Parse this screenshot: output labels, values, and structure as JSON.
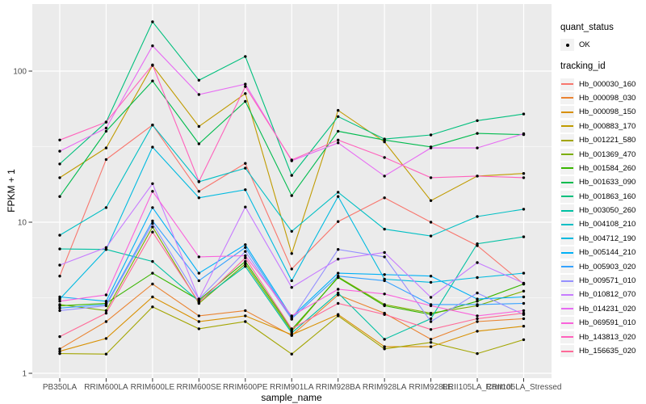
{
  "chart_data": {
    "type": "line",
    "title": "",
    "xlabel": "sample_name",
    "ylabel": "FPKM + 1",
    "y_scale": "log10",
    "y_ticks": [
      1,
      10,
      100
    ],
    "y_tick_labels": [
      "1",
      "10",
      "100"
    ],
    "y_minor_ticks": [
      3.162,
      31.62
    ],
    "ylim": [
      1.25,
      280
    ],
    "categories": [
      "PB350LA",
      "RRIM600LA",
      "RRIM600LE",
      "RRIM600SE",
      "RRIM600PE",
      "RRIM901LA",
      "RRIM928BA",
      "RRIM928LA",
      "RRIM928LE",
      "RRII105LA_Control",
      "RRII105LA_Stressed"
    ],
    "panel_bg": "#EBEBEB",
    "gridline_color": "#FFFFFF",
    "tick_color": "#333333",
    "tick_label_color": "#4D4D4D",
    "point_color": "#000000",
    "legend": {
      "quant_status": {
        "title": "quant_status",
        "items": [
          {
            "label": "OK",
            "marker": "black-point"
          }
        ]
      },
      "tracking_id": {
        "title": "tracking_id",
        "marker": "line"
      }
    },
    "series": [
      {
        "name": "Hb_000030_160",
        "color": "#F8766D",
        "values": [
          4.4,
          26,
          44,
          16,
          24.5,
          4.9,
          10.1,
          14.5,
          10,
          7,
          3.9
        ]
      },
      {
        "name": "Hb_000098_030",
        "color": "#EA8331",
        "values": [
          1.45,
          2.2,
          3.9,
          2.4,
          2.6,
          1.78,
          3.3,
          2.5,
          1.68,
          2.2,
          2.3
        ]
      },
      {
        "name": "Hb_000098_150",
        "color": "#D89000",
        "values": [
          1.4,
          1.7,
          3.2,
          2.2,
          2.4,
          1.8,
          2.45,
          1.5,
          1.5,
          1.9,
          2.05
        ]
      },
      {
        "name": "Hb_000883_170",
        "color": "#C09B00",
        "values": [
          19.7,
          31,
          109,
          43,
          71,
          6.2,
          55,
          34,
          13.9,
          20.2,
          21
        ]
      },
      {
        "name": "Hb_001221_580",
        "color": "#A3A500",
        "values": [
          1.35,
          1.34,
          2.75,
          1.97,
          2.2,
          1.34,
          2.4,
          1.45,
          1.6,
          1.35,
          1.67
        ]
      },
      {
        "name": "Hb_001369_470",
        "color": "#7CAE00",
        "values": [
          2.85,
          2.6,
          9.3,
          2.9,
          5.3,
          1.9,
          4.35,
          2.85,
          2.5,
          2.8,
          3.5
        ]
      },
      {
        "name": "Hb_001584_260",
        "color": "#39B600",
        "values": [
          2.8,
          2.9,
          4.6,
          3.05,
          5.5,
          1.95,
          4.3,
          2.8,
          2.45,
          3.0,
          3.9
        ]
      },
      {
        "name": "Hb_001633_090",
        "color": "#00BB4E",
        "values": [
          14.8,
          40,
          86,
          33,
          63,
          15,
          40,
          35,
          31.5,
          38.7,
          38
        ]
      },
      {
        "name": "Hb_001863_160",
        "color": "#00BF7D",
        "values": [
          24.3,
          46,
          212,
          87,
          125,
          20.4,
          50,
          35.5,
          37.8,
          47,
          52
        ]
      },
      {
        "name": "Hb_003050_260",
        "color": "#00C1A3",
        "values": [
          6.65,
          6.6,
          5.5,
          3.0,
          5.1,
          1.85,
          3.4,
          1.68,
          2.3,
          7.2,
          8.0
        ]
      },
      {
        "name": "Hb_004108_210",
        "color": "#00BFC4",
        "values": [
          8.2,
          12.5,
          44,
          18.5,
          22.8,
          8.7,
          15.8,
          9.0,
          8.1,
          10.9,
          12.2
        ]
      },
      {
        "name": "Hb_004712_190",
        "color": "#00BAE0",
        "values": [
          3.1,
          6.6,
          31.4,
          14.5,
          16.4,
          4.1,
          14.8,
          4.2,
          4.0,
          4.3,
          4.6
        ]
      },
      {
        "name": "Hb_005144_210",
        "color": "#00B0F6",
        "values": [
          3.2,
          3.0,
          12.5,
          4.6,
          7.1,
          2.36,
          4.6,
          4.5,
          4.4,
          3.1,
          3.2
        ]
      },
      {
        "name": "Hb_005903_020",
        "color": "#35A2FF",
        "values": [
          2.7,
          2.85,
          10.2,
          4.1,
          6.8,
          2.3,
          4.4,
          4.1,
          2.85,
          2.85,
          2.9
        ]
      },
      {
        "name": "Hb_009571_010",
        "color": "#9590FF",
        "values": [
          2.6,
          2.8,
          9.8,
          3.1,
          6.4,
          2.28,
          6.6,
          5.9,
          2.2,
          3.4,
          2.45
        ]
      },
      {
        "name": "Hb_010812_070",
        "color": "#C77CFF",
        "values": [
          5.2,
          6.8,
          18,
          3.1,
          12.6,
          3.7,
          5.7,
          6.3,
          3.18,
          5.4,
          3.95
        ]
      },
      {
        "name": "Hb_014231_020",
        "color": "#E76BF3",
        "values": [
          29.5,
          42,
          147,
          70,
          82,
          25.5,
          33.5,
          20.2,
          31,
          31,
          38.5
        ]
      },
      {
        "name": "Hb_069591_010",
        "color": "#FA62DB",
        "values": [
          3.0,
          3.3,
          16,
          5.9,
          6.0,
          2.4,
          3.6,
          3.35,
          2.8,
          2.4,
          2.6
        ]
      },
      {
        "name": "Hb_143813_020",
        "color": "#FF62BC",
        "values": [
          35,
          46,
          110,
          18.6,
          79,
          25.8,
          35,
          26.8,
          19.7,
          20.2,
          19.7
        ]
      },
      {
        "name": "Hb_156635_020",
        "color": "#FF6A98",
        "values": [
          1.75,
          2.5,
          8.6,
          2.95,
          5.8,
          1.97,
          2.9,
          2.45,
          1.95,
          2.3,
          2.5
        ]
      }
    ]
  }
}
